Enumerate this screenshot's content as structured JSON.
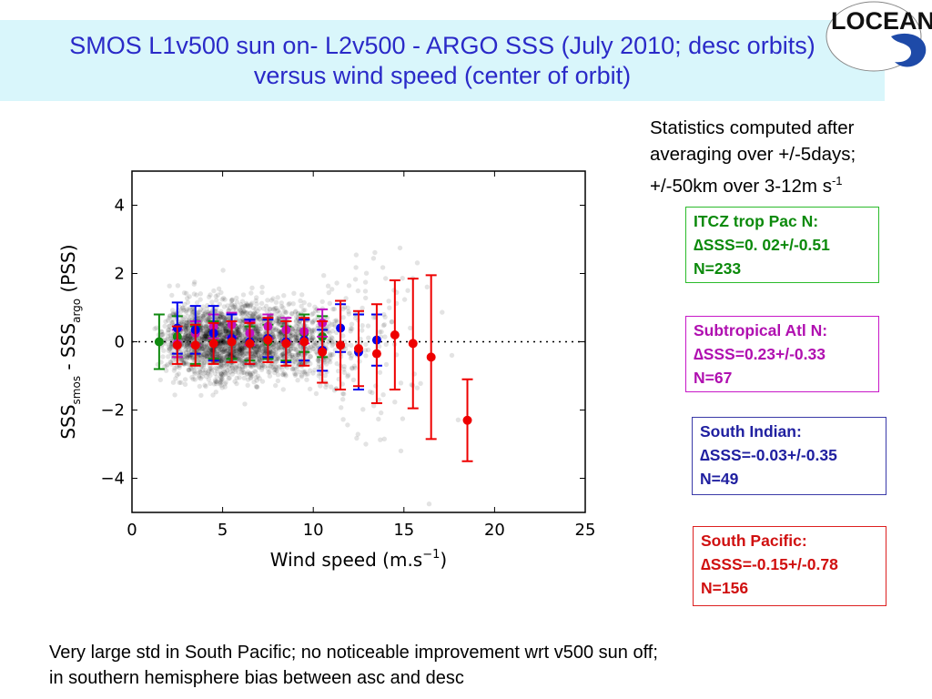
{
  "title": {
    "line1": "SMOS L1v500 sun on- L2v500 - ARGO SSS (July 2010; desc orbits)",
    "line2": "versus wind speed (center of orbit)"
  },
  "logo_text": "LOCEAN",
  "stats_note": {
    "line1": "Statistics computed after",
    "line2": "averaging over +/-5days;",
    "line3_main": "+/-50km over 3-12m s",
    "line3_sup": "-1"
  },
  "regions": [
    {
      "name": "ITCZ trop Pac N:",
      "stat": "∆SSS=0. 02+/-0.51",
      "n": "N=233",
      "color": "#0c8a0c"
    },
    {
      "name": "Subtropical Atl N:",
      "stat": "∆SSS=0.23+/-0.33",
      "n": "N=67",
      "color": "#b010b0"
    },
    {
      "name": "South Indian:",
      "stat": "∆SSS=-0.03+/-0.35",
      "n": "N=49",
      "color": "#2020a0"
    },
    {
      "name": "South Pacific:",
      "stat": "∆SSS=-0.15+/-0.78",
      "n": "N=156",
      "color": "#d01010"
    }
  ],
  "footer": {
    "line1": "Very large std in South Pacific; no noticeable improvement wrt v500 sun off;",
    "line2": "in southern hemisphere bias between asc and desc"
  },
  "chart_data": {
    "type": "scatter",
    "xlabel": "Wind speed (m.s",
    "xlabel_sup": "−1",
    "xlabel_close": ")",
    "ylabel_parts": {
      "a": "SSS",
      "a_sub": "smos",
      "mid": " - SSS",
      "b_sub": "argo",
      "end": " (PSS)"
    },
    "xlim": [
      0,
      25
    ],
    "ylim": [
      -5,
      5
    ],
    "xticks": [
      0,
      5,
      10,
      15,
      20,
      25
    ],
    "yticks": [
      4,
      2,
      0,
      -2,
      -4
    ],
    "ytick_labels": [
      "4",
      "2",
      "0",
      "−2",
      "−4"
    ],
    "zero_line": "dotted",
    "background_scatter": {
      "color": "#000000",
      "description_hidden": true
    },
    "series": [
      {
        "name": "ITCZ trop Pac N",
        "color": "#108a10",
        "points": [
          [
            1.5,
            0.0,
            0.8
          ],
          [
            2.5,
            0.15,
            0.6
          ],
          [
            3.5,
            -0.1,
            0.55
          ],
          [
            4.5,
            0.05,
            0.55
          ],
          [
            5.5,
            0.0,
            0.5
          ],
          [
            6.5,
            -0.05,
            0.5
          ],
          [
            7.5,
            0.0,
            0.5
          ],
          [
            8.5,
            -0.05,
            0.5
          ],
          [
            9.5,
            0.25,
            0.55
          ],
          [
            10.5,
            0.15,
            0.6
          ]
        ]
      },
      {
        "name": "Subtropical Atl N",
        "color": "#c010c0",
        "points": [
          [
            2.5,
            -0.05,
            0.4
          ],
          [
            3.5,
            0.25,
            0.35
          ],
          [
            4.5,
            0.45,
            0.35
          ],
          [
            5.5,
            0.5,
            0.35
          ],
          [
            6.5,
            0.25,
            0.35
          ],
          [
            7.5,
            0.45,
            0.35
          ],
          [
            8.5,
            0.35,
            0.35
          ],
          [
            9.5,
            0.3,
            0.35
          ],
          [
            10.5,
            0.55,
            0.4
          ]
        ]
      },
      {
        "name": "South Indian",
        "color": "#0000ee",
        "points": [
          [
            2.5,
            0.4,
            0.75
          ],
          [
            3.5,
            0.35,
            0.7
          ],
          [
            4.5,
            0.25,
            0.8
          ],
          [
            5.5,
            0.1,
            0.7
          ],
          [
            6.5,
            0.0,
            0.65
          ],
          [
            7.5,
            0.1,
            0.55
          ],
          [
            8.5,
            0.0,
            0.6
          ],
          [
            9.5,
            0.05,
            0.6
          ],
          [
            10.5,
            -0.25,
            0.6
          ],
          [
            11.5,
            0.4,
            0.7
          ],
          [
            12.5,
            -0.3,
            1.1
          ],
          [
            13.5,
            0.05,
            0.75
          ]
        ]
      },
      {
        "name": "South Pacific",
        "color": "#ee0000",
        "points": [
          [
            2.5,
            -0.1,
            0.55
          ],
          [
            3.5,
            -0.1,
            0.6
          ],
          [
            4.5,
            -0.05,
            0.6
          ],
          [
            5.5,
            0.0,
            0.6
          ],
          [
            6.5,
            -0.05,
            0.6
          ],
          [
            7.5,
            0.05,
            0.65
          ],
          [
            8.5,
            -0.05,
            0.65
          ],
          [
            9.5,
            0.0,
            0.7
          ],
          [
            10.5,
            -0.3,
            0.9
          ],
          [
            11.5,
            -0.1,
            1.3
          ],
          [
            12.5,
            -0.2,
            1.1
          ],
          [
            13.5,
            -0.35,
            1.45
          ],
          [
            14.5,
            0.2,
            1.6
          ],
          [
            15.5,
            -0.05,
            1.9
          ],
          [
            16.5,
            -0.45,
            2.4
          ],
          [
            18.5,
            -2.3,
            1.2
          ]
        ]
      }
    ]
  }
}
